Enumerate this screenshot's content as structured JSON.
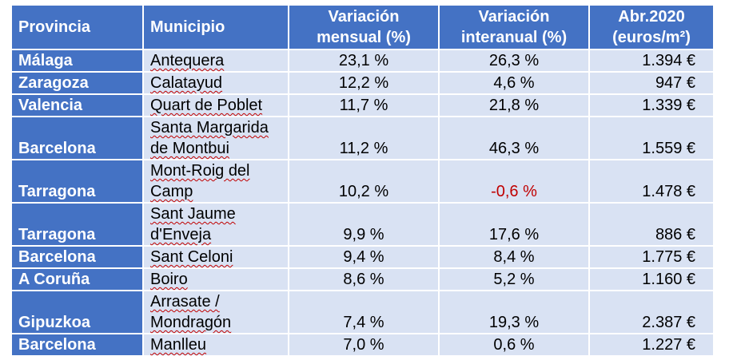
{
  "table": {
    "header": [
      "Provincia",
      "Municipio",
      "Variación\nmensual (%)",
      "Variación\ninteranual (%)",
      "Abr.2020\n(euros/m²)"
    ],
    "rows": [
      [
        "Málaga",
        "Antequera",
        "23,1 %",
        "26,3 %",
        "1.394 €"
      ],
      [
        "Zaragoza",
        "Calatayud",
        "12,2 %",
        "4,6 %",
        "947 €"
      ],
      [
        "Valencia",
        "Quart de Poblet",
        "11,7 %",
        "21,8 %",
        "1.339 €"
      ],
      [
        "Barcelona",
        "Santa Margarida\nde Montbui",
        "11,2 %",
        "46,3 %",
        "1.559 €"
      ],
      [
        "Tarragona",
        "Mont-Roig del\nCamp",
        "10,2 %",
        "-0,6 %",
        "1.478 €"
      ],
      [
        "Tarragona",
        "Sant Jaume\nd'Enveja",
        "9,9 %",
        "17,6 %",
        "886 €"
      ],
      [
        "Barcelona",
        "Sant Celoni",
        "9,4 %",
        "8,4 %",
        "1.775 €"
      ],
      [
        "A Coruña",
        "Boiro",
        "8,6 %",
        "5,2 %",
        "1.160 €"
      ],
      [
        "Gipuzkoa",
        "Arrasate /\nMondragón",
        "7,4 %",
        "19,3 %",
        "2.387 €"
      ],
      [
        "Barcelona",
        "Manlleu",
        "7,0 %",
        "0,6 %",
        "1.227 €"
      ]
    ]
  }
}
